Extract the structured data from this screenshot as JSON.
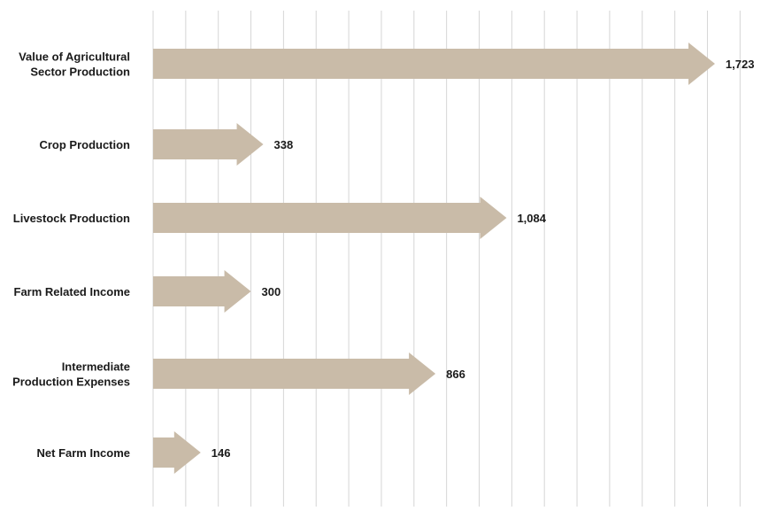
{
  "chart_data": {
    "type": "bar",
    "orientation": "horizontal",
    "bar_style": "arrow",
    "title": "",
    "xlabel": "",
    "ylabel": "",
    "xlim": [
      0,
      1823
    ],
    "grid": true,
    "categories": [
      "Value of Agricultural Sector Production",
      "Crop Production",
      "Livestock Production",
      "Farm Related Income",
      "Intermediate Production Expenses",
      "Net Farm Income"
    ],
    "category_lines": [
      [
        "Value of Agricultural",
        "Sector Production"
      ],
      [
        "Crop Production"
      ],
      [
        "Livestock Production"
      ],
      [
        "Farm Related Income"
      ],
      [
        "Intermediate",
        "Production Expenses"
      ],
      [
        "Net Farm Income"
      ]
    ],
    "values": [
      1723,
      338,
      1084,
      300,
      866,
      146
    ],
    "value_labels": [
      "1,723",
      "338",
      "1,084",
      "300",
      "866",
      "146"
    ],
    "colors": {
      "bar": "#c9bba8",
      "grid": "#d6d6d6",
      "text": "#1a1a1a"
    }
  }
}
